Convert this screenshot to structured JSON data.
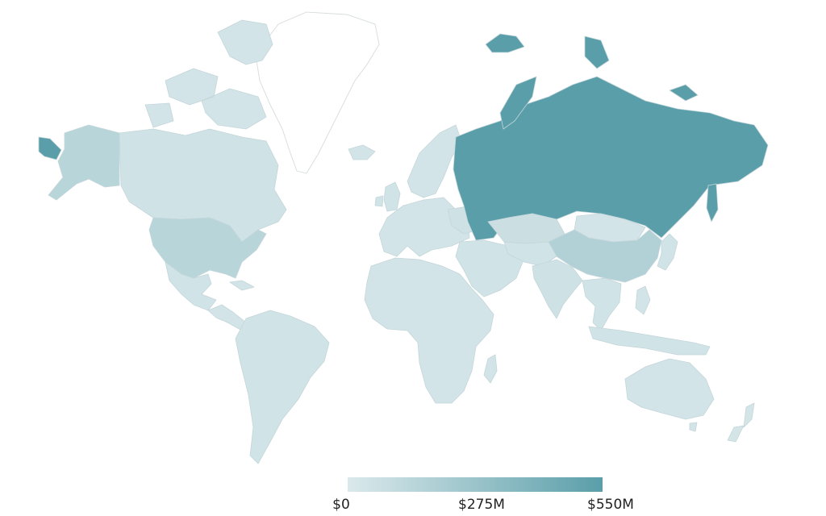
{
  "legend": {
    "min_label": "$0",
    "mid_label": "$275M",
    "max_label": "$550M",
    "color_low": "#dbe9ec",
    "color_high": "#5a9ea9"
  },
  "scale": {
    "min": 0,
    "max": 550,
    "unit": "$M"
  },
  "regions": [
    {
      "id": "russia",
      "value": 550
    },
    {
      "id": "china",
      "value": 175
    },
    {
      "id": "usa",
      "value": 150
    },
    {
      "id": "kazakhstan",
      "value": 70
    },
    {
      "id": "mongolia",
      "value": 40
    },
    {
      "id": "canada",
      "value": 50
    },
    {
      "id": "alaska",
      "value": 150
    },
    {
      "id": "mexico",
      "value": 45
    },
    {
      "id": "central-america",
      "value": 40
    },
    {
      "id": "south-america",
      "value": 45
    },
    {
      "id": "europe",
      "value": 40
    },
    {
      "id": "scandinavia",
      "value": 40
    },
    {
      "id": "uk",
      "value": 45
    },
    {
      "id": "ukraine",
      "value": 55
    },
    {
      "id": "africa",
      "value": 35
    },
    {
      "id": "madagascar",
      "value": 35
    },
    {
      "id": "middle-east",
      "value": 45
    },
    {
      "id": "central-asia",
      "value": 45
    },
    {
      "id": "india",
      "value": 55
    },
    {
      "id": "southeast-asia",
      "value": 45
    },
    {
      "id": "japan",
      "value": 45
    },
    {
      "id": "indonesia",
      "value": 45
    },
    {
      "id": "philippines",
      "value": 40
    },
    {
      "id": "australia",
      "value": 35
    },
    {
      "id": "new-zealand",
      "value": 30
    },
    {
      "id": "iceland",
      "value": 40
    },
    {
      "id": "arctic-islands",
      "value": 40
    }
  ]
}
